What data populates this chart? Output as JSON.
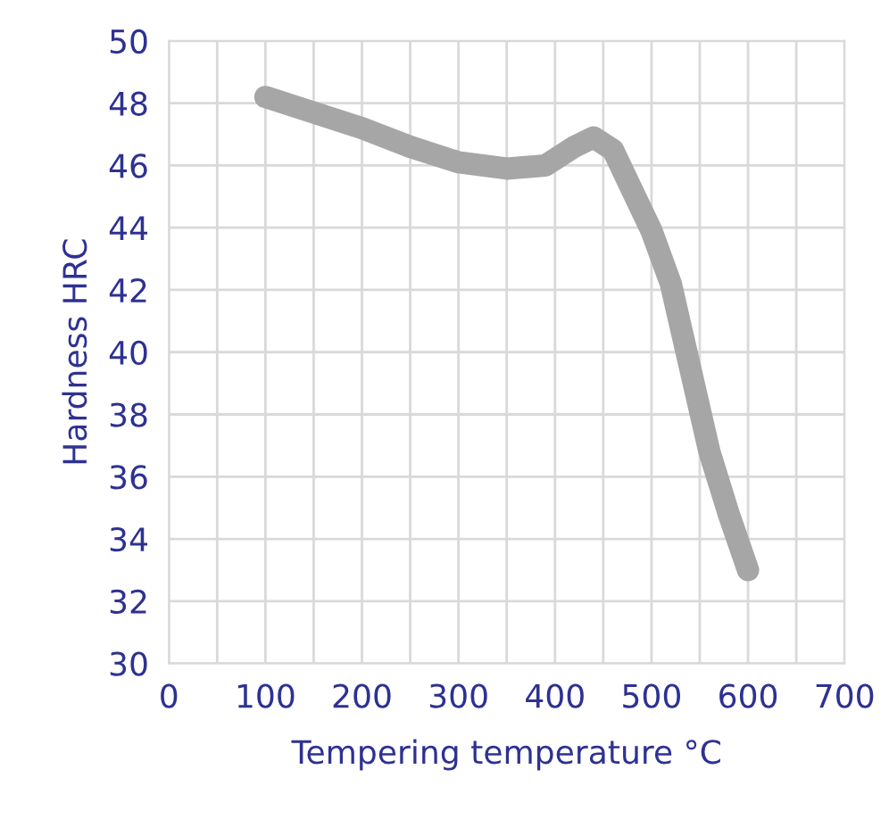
{
  "chart_data": {
    "type": "line",
    "xlabel": "Tempering temperature °C",
    "ylabel": "Hardness HRC",
    "x": [
      100,
      150,
      200,
      250,
      300,
      350,
      390,
      420,
      440,
      460,
      480,
      500,
      520,
      540,
      560,
      580,
      600
    ],
    "series": [
      {
        "color": "#a6a6a6",
        "values": [
          48.2,
          47.7,
          47.2,
          46.6,
          46.1,
          45.9,
          46.0,
          46.6,
          46.9,
          46.5,
          45.2,
          43.9,
          42.2,
          39.5,
          36.8,
          34.8,
          33.0
        ]
      }
    ],
    "xlim": [
      0,
      700
    ],
    "ylim": [
      30,
      50
    ],
    "xticks": [
      0,
      {
        "value": 50,
        "label": null
      },
      100,
      {
        "value": 150,
        "label": null
      },
      200,
      {
        "value": 250,
        "label": null
      },
      300,
      {
        "value": 350,
        "label": null
      },
      400,
      {
        "value": 450,
        "label": null
      },
      500,
      {
        "value": 550,
        "label": null
      },
      600,
      {
        "value": 650,
        "label": null
      },
      700
    ],
    "yticks": [
      30,
      32,
      34,
      36,
      38,
      40,
      42,
      44,
      46,
      48,
      50
    ],
    "grid": true,
    "legend": false,
    "line_style": "solid"
  }
}
